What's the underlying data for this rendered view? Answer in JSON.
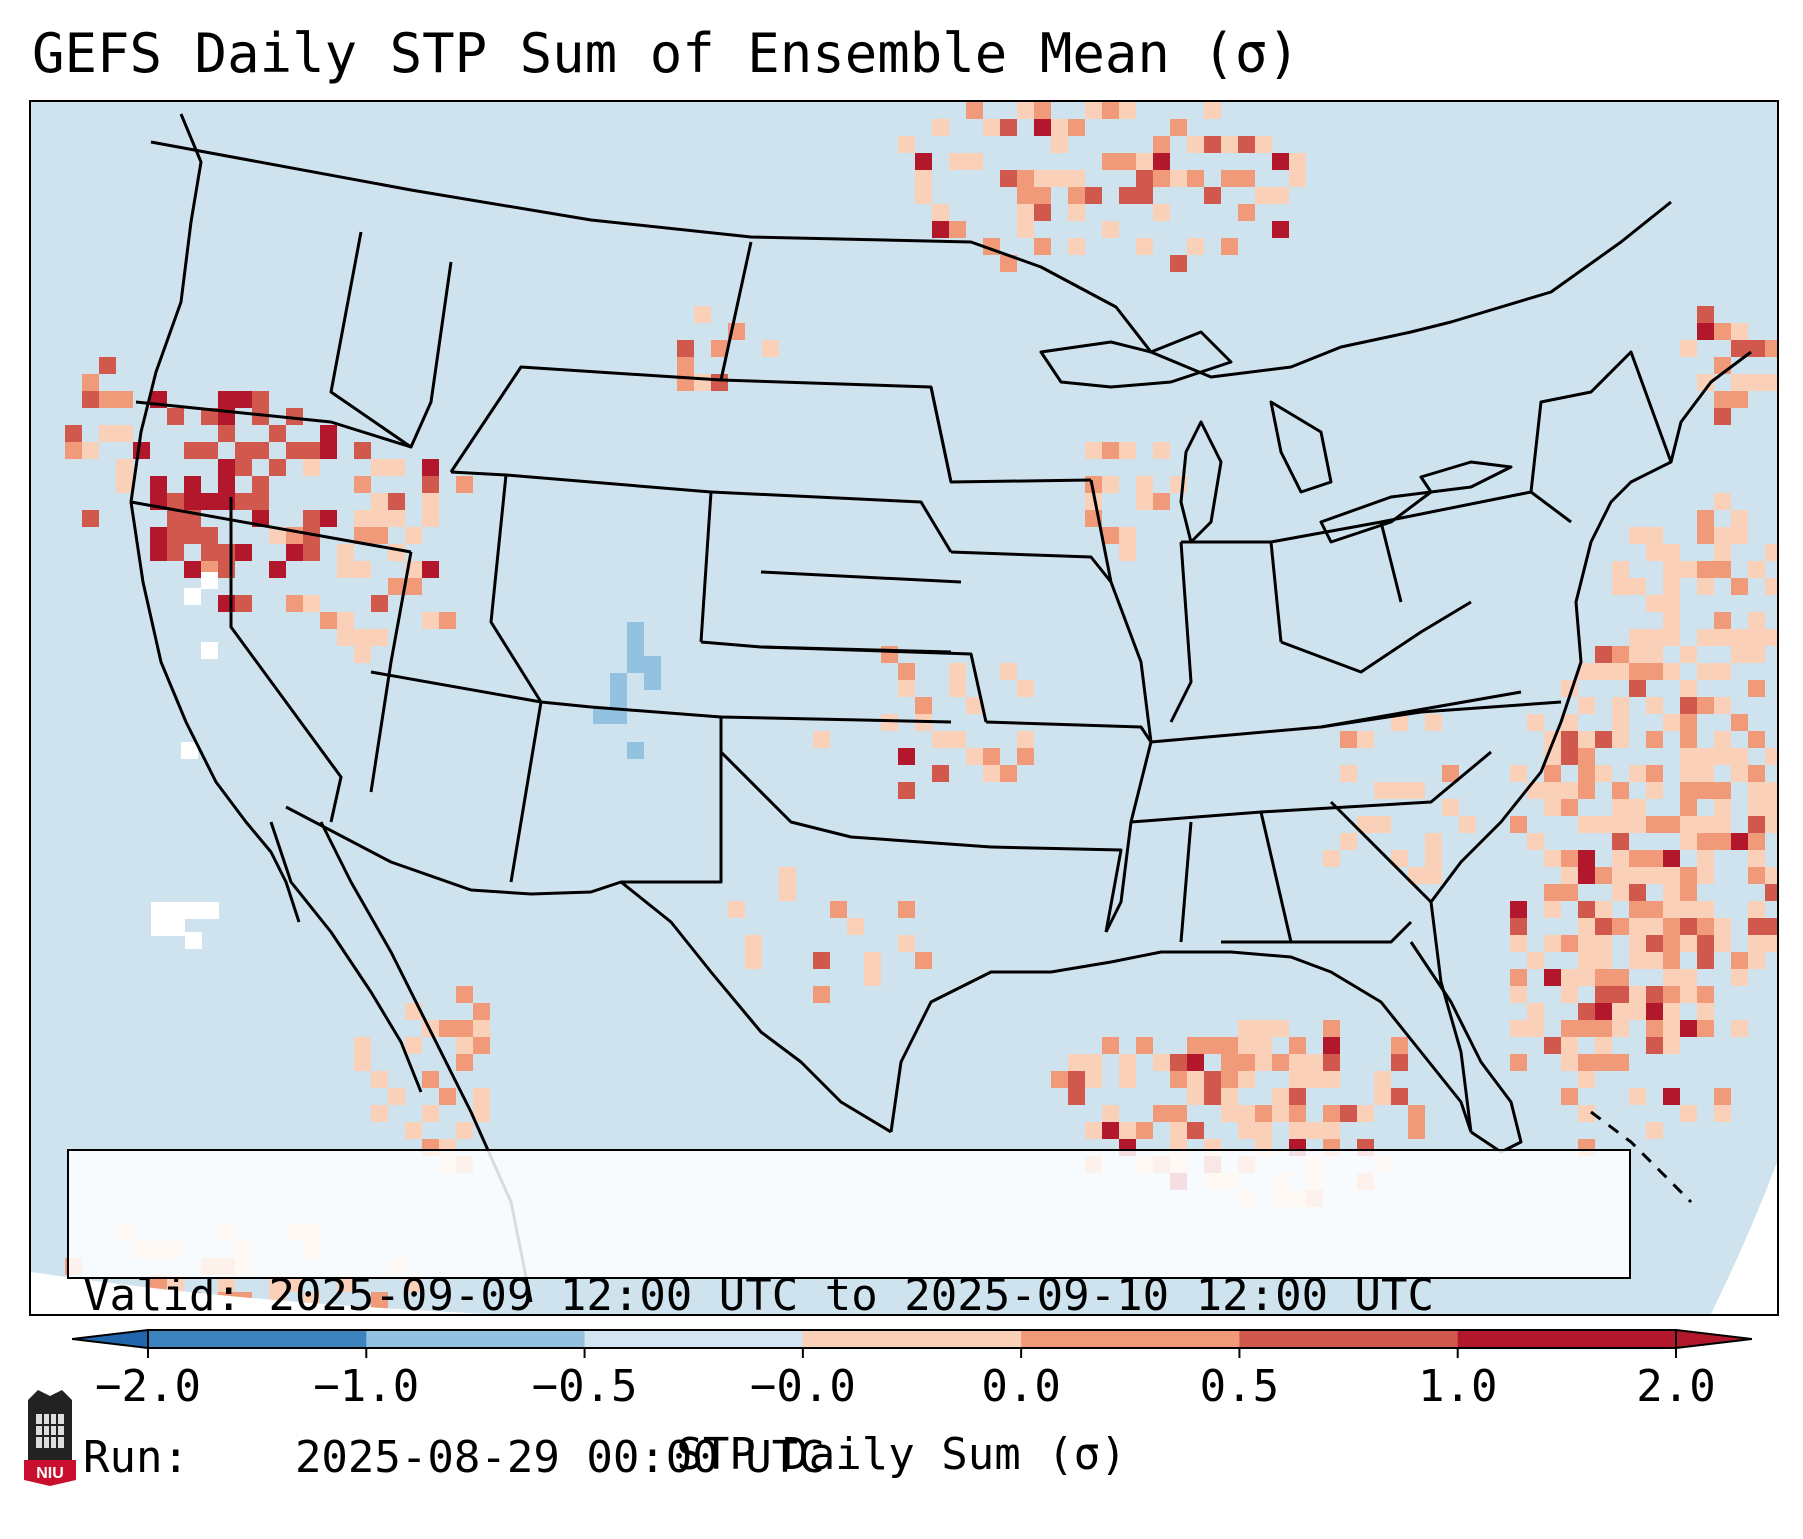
{
  "title": "GEFS Daily STP Sum of Ensemble Mean (σ)",
  "info": {
    "valid_label": "Valid:",
    "valid_value": "2025-09-09 12:00 UTC to 2025-09-10 12:00 UTC",
    "run_label": "Run:",
    "run_value": "2025-08-29 00:00 UTC"
  },
  "colorbar": {
    "label": "STP Daily Sum (σ)",
    "ticks": [
      "−2.0",
      "−1.0",
      "−0.5",
      "−0.0",
      "0.0",
      "0.5",
      "1.0",
      "2.0"
    ],
    "bin_colors": [
      "#3d84bf",
      "#92c2df",
      "#d2e5f0",
      "#f7f7f7",
      "#fbd0b9",
      "#f09a7a",
      "#d1584c",
      "#b3172c"
    ],
    "extend_low_color": "#2166ac",
    "extend_high_color": "#b2182b"
  },
  "map": {
    "region": "Contiguous United States",
    "background_color": "#cfe3ef",
    "border_color": "#000000"
  },
  "logo": {
    "text": "NIU",
    "color": "#c8102e"
  }
}
